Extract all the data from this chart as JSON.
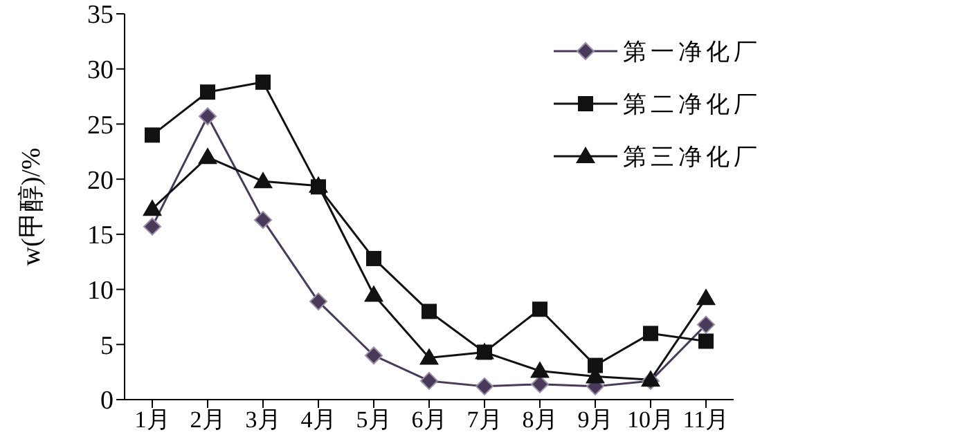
{
  "chart_data": {
    "type": "line",
    "ylabel": "w(甲醇)/%",
    "categories": [
      "1月",
      "2月",
      "3月",
      "4月",
      "5月",
      "6月",
      "7月",
      "8月",
      "9月",
      "10月",
      "11月"
    ],
    "series": [
      {
        "name": "第一净化厂",
        "color": "#4a3a5a",
        "marker": "diamond",
        "values": [
          15.7,
          25.7,
          16.3,
          8.9,
          4.0,
          1.7,
          1.2,
          1.4,
          1.2,
          1.7,
          6.8
        ]
      },
      {
        "name": "第二净化厂",
        "color": "#111111",
        "marker": "square",
        "values": [
          24.0,
          27.9,
          28.8,
          19.3,
          12.8,
          8.0,
          4.3,
          8.2,
          3.1,
          6.0,
          5.3
        ]
      },
      {
        "name": "第三净化厂",
        "color": "#111111",
        "marker": "triangle",
        "values": [
          17.3,
          22.0,
          19.8,
          19.4,
          9.5,
          3.8,
          4.3,
          2.6,
          2.1,
          1.8,
          9.2
        ]
      }
    ],
    "ylim": [
      0,
      35
    ],
    "yticks": [
      0,
      5,
      10,
      15,
      20,
      25,
      30,
      35
    ],
    "grid": false,
    "legend": "top right",
    "line_style": "solid"
  }
}
